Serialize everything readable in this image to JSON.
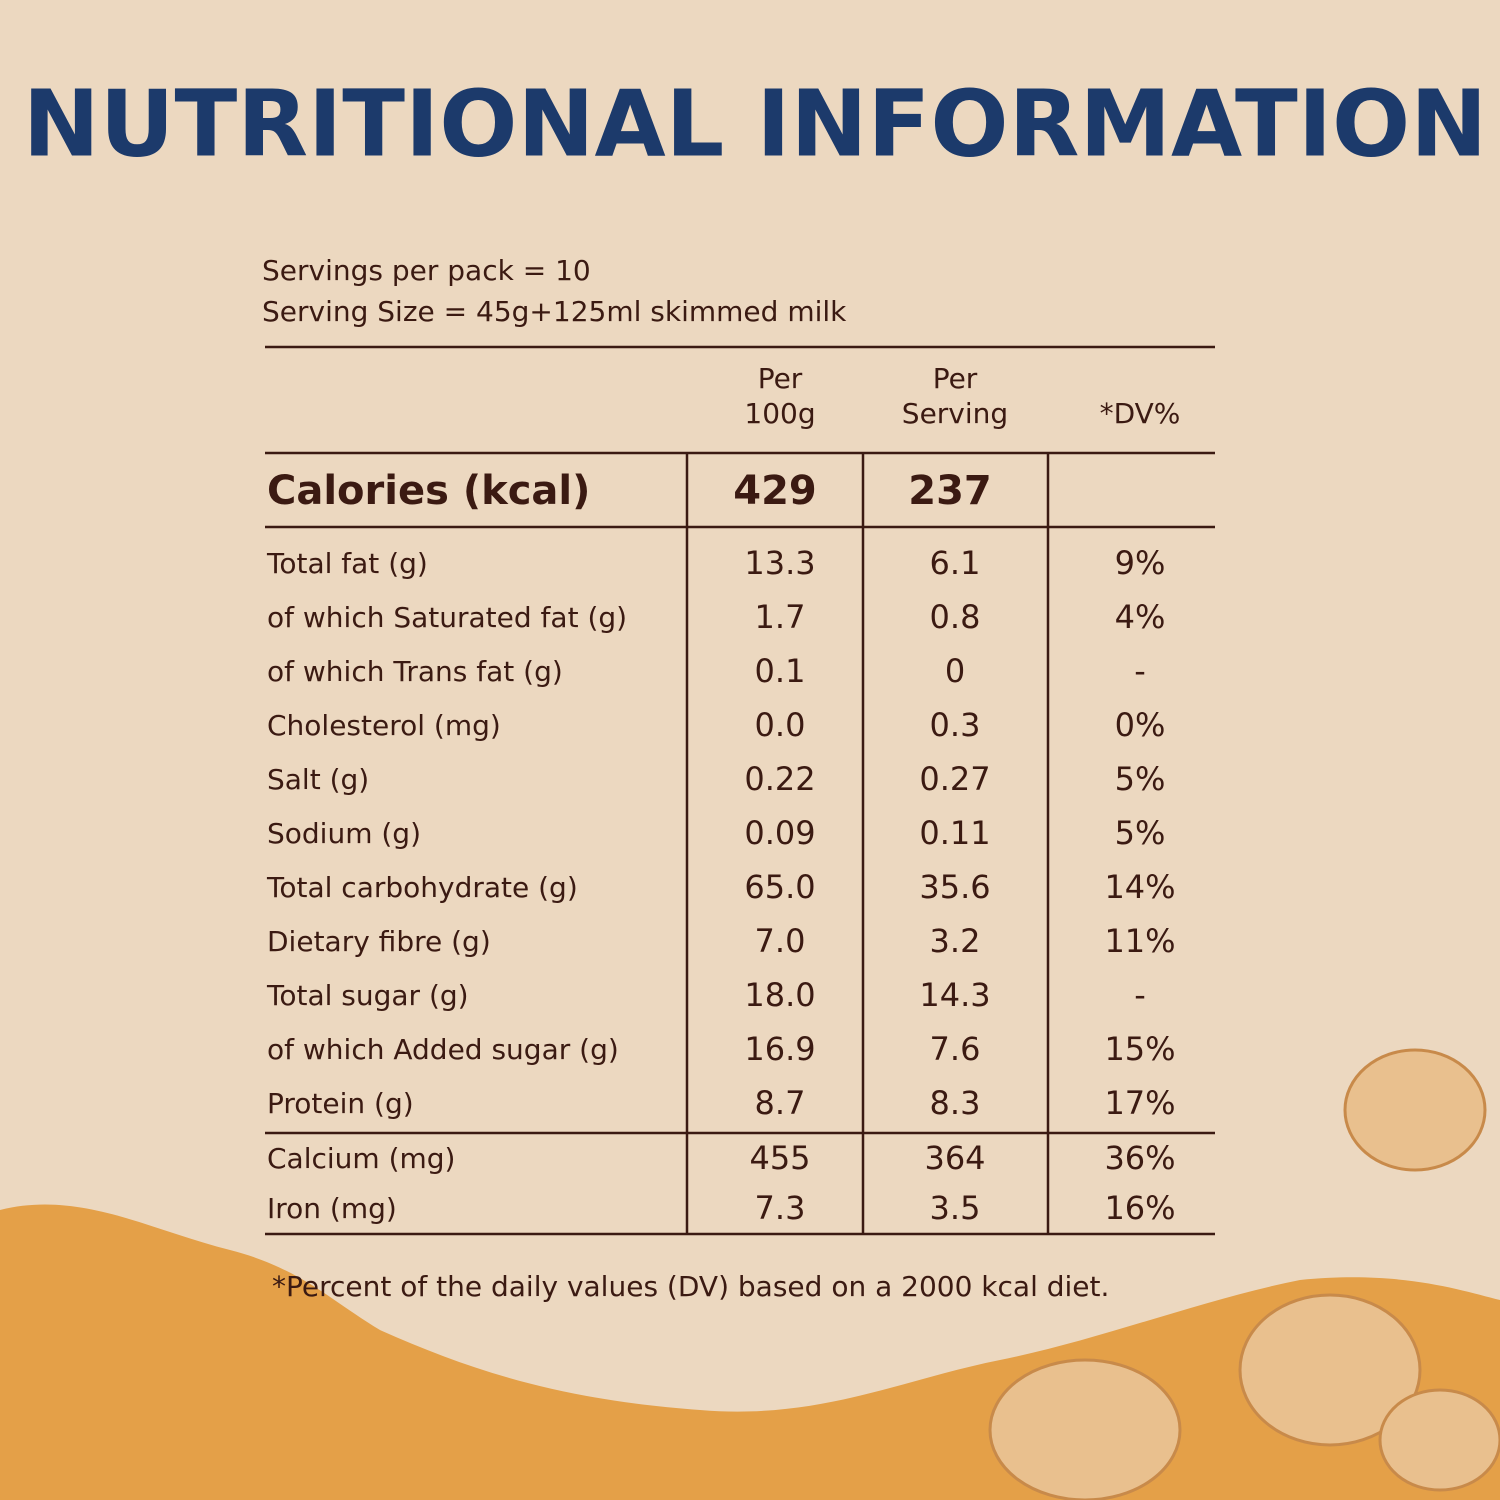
{
  "title": "NUTRITIONAL INFORMATION",
  "servings": [
    "Servings per pack = 10",
    "Serving Size = 45g+125ml skimmed milk"
  ],
  "table": {
    "header": [
      [
        "Per",
        "100g"
      ],
      [
        "Per",
        "Serving"
      ],
      [
        "*DV%"
      ]
    ],
    "calories": [
      "Calories (kcal)",
      "429",
      "237",
      ""
    ],
    "rows": [
      [
        "Total fat (g)",
        "13.3",
        "6.1",
        "9%"
      ],
      [
        "of which Saturated fat (g)",
        "1.7",
        "0.8",
        "4%"
      ],
      [
        "of which Trans fat (g)",
        "0.1",
        "0",
        "-"
      ],
      [
        "Cholesterol (mg)",
        "0.0",
        "0.3",
        "0%"
      ],
      [
        "Salt (g)",
        "0.22",
        "0.27",
        "5%"
      ],
      [
        "Sodium (g)",
        "0.09",
        "0.11",
        "5%"
      ],
      [
        "Total carbohydrate (g)",
        "65.0",
        "35.6",
        "14%"
      ],
      [
        "Dietary fibre (g)",
        "7.0",
        "3.2",
        "11%"
      ],
      [
        "Total sugar (g)",
        "18.0",
        "14.3",
        "-"
      ],
      [
        "of which Added sugar (g)",
        "16.9",
        "7.6",
        "15%"
      ],
      [
        "Protein (g)",
        "8.7",
        "8.3",
        "17%"
      ]
    ],
    "minerals": [
      [
        "Calcium (mg)",
        "455",
        "364",
        "36%"
      ],
      [
        "Iron (mg)",
        "7.3",
        "3.5",
        "16%"
      ]
    ]
  },
  "footnote": "*Percent of the daily values (DV) based on a 2000 kcal diet."
}
